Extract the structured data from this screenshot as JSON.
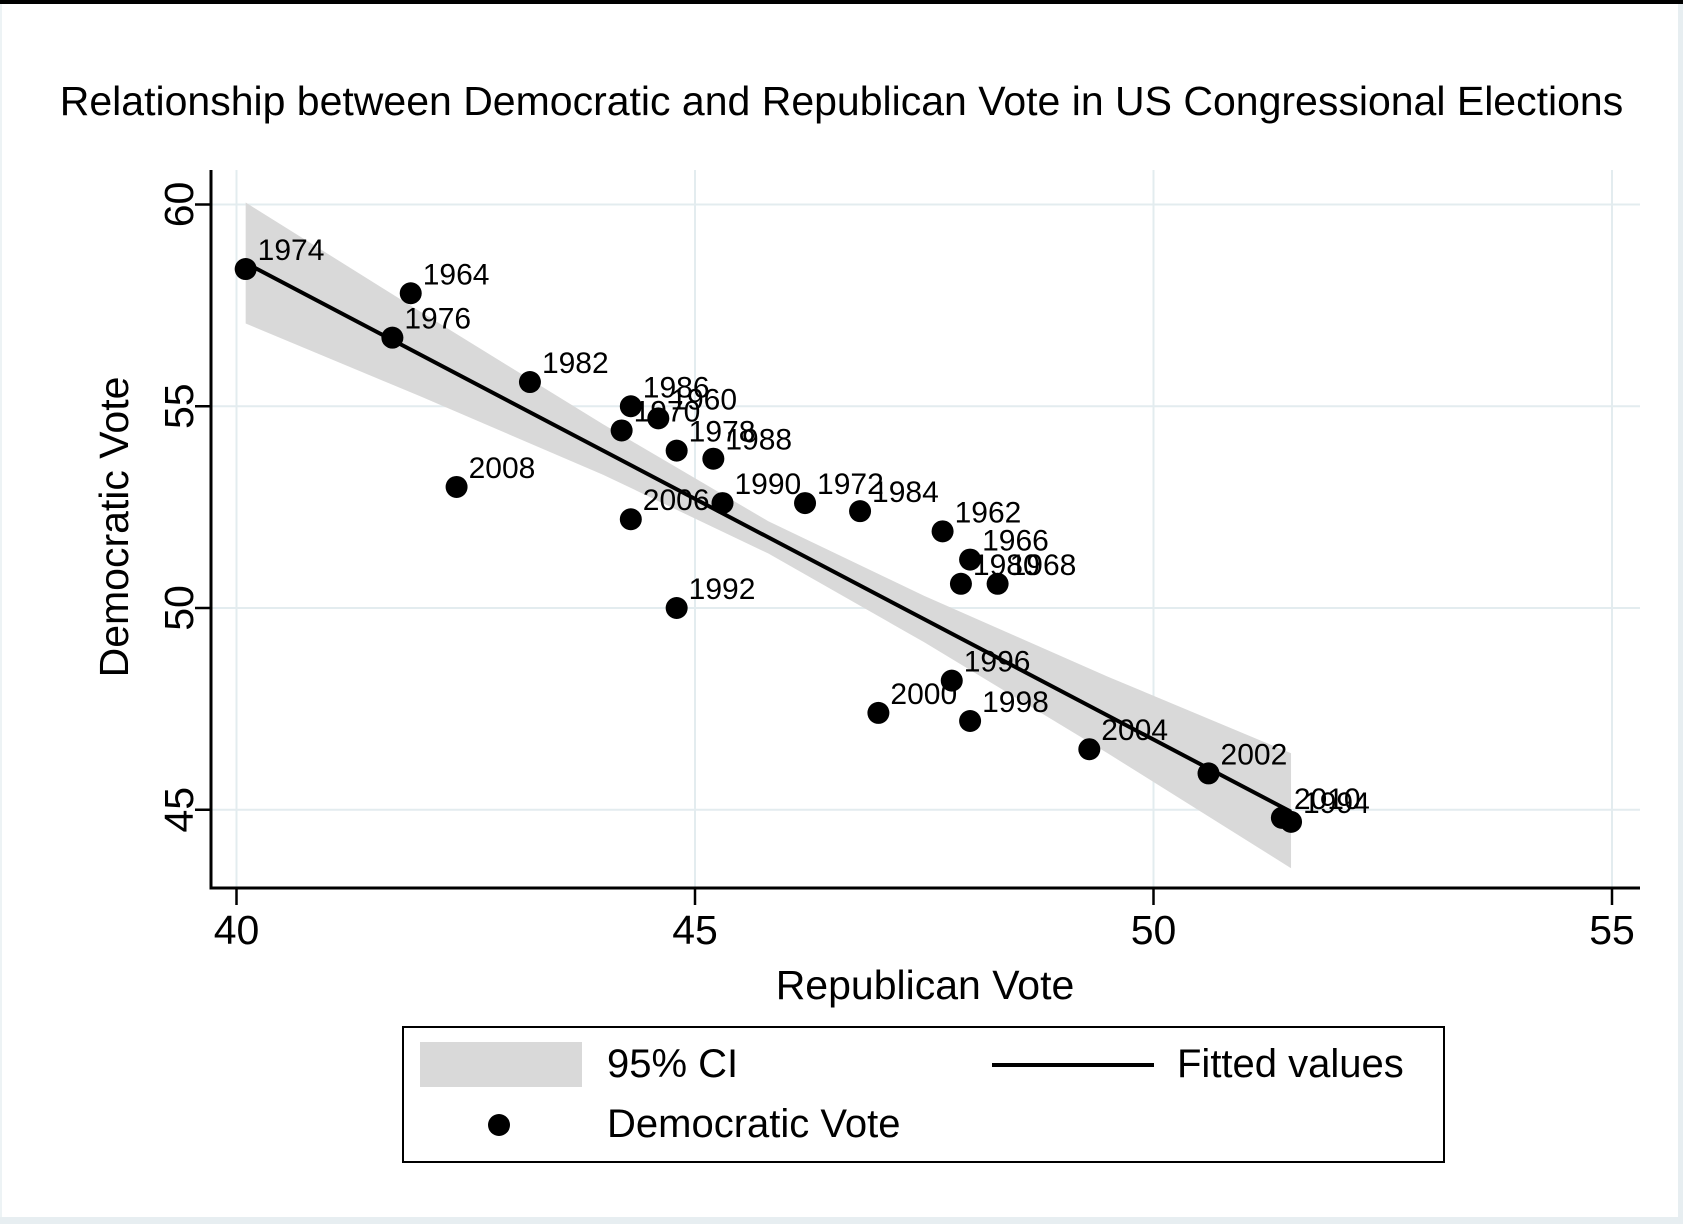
{
  "chart_data": {
    "type": "scatter",
    "title": "Relationship between Democratic and Republican Vote in US Congressional Elections",
    "xlabel": "Republican Vote",
    "ylabel": "Democratic Vote",
    "x_ticks": [
      40,
      45,
      50,
      55
    ],
    "y_ticks": [
      45,
      50,
      55,
      60
    ],
    "xlim": [
      39.7,
      55.3
    ],
    "ylim": [
      43.1,
      60.9
    ],
    "grid": true,
    "legend_position": "bottom",
    "points": [
      {
        "year": "1960",
        "rep": 44.6,
        "dem": 54.7
      },
      {
        "year": "1962",
        "rep": 47.7,
        "dem": 51.9
      },
      {
        "year": "1964",
        "rep": 41.9,
        "dem": 57.8
      },
      {
        "year": "1966",
        "rep": 48.0,
        "dem": 51.2
      },
      {
        "year": "1968",
        "rep": 48.3,
        "dem": 50.6
      },
      {
        "year": "1970",
        "rep": 44.2,
        "dem": 54.4
      },
      {
        "year": "1972",
        "rep": 46.2,
        "dem": 52.6
      },
      {
        "year": "1974",
        "rep": 40.1,
        "dem": 58.4
      },
      {
        "year": "1976",
        "rep": 41.7,
        "dem": 56.7
      },
      {
        "year": "1978",
        "rep": 44.8,
        "dem": 53.9
      },
      {
        "year": "1980",
        "rep": 47.9,
        "dem": 50.6
      },
      {
        "year": "1982",
        "rep": 43.2,
        "dem": 55.6
      },
      {
        "year": "1984",
        "rep": 46.8,
        "dem": 52.4
      },
      {
        "year": "1986",
        "rep": 44.3,
        "dem": 55.0
      },
      {
        "year": "1988",
        "rep": 45.2,
        "dem": 53.7
      },
      {
        "year": "1990",
        "rep": 45.3,
        "dem": 52.6
      },
      {
        "year": "1992",
        "rep": 44.8,
        "dem": 50.0
      },
      {
        "year": "1994",
        "rep": 51.5,
        "dem": 44.7
      },
      {
        "year": "1996",
        "rep": 47.8,
        "dem": 48.2
      },
      {
        "year": "1998",
        "rep": 48.0,
        "dem": 47.2
      },
      {
        "year": "2000",
        "rep": 47.0,
        "dem": 47.4
      },
      {
        "year": "2002",
        "rep": 50.6,
        "dem": 45.9
      },
      {
        "year": "2004",
        "rep": 49.3,
        "dem": 46.5
      },
      {
        "year": "2006",
        "rep": 44.3,
        "dem": 52.2
      },
      {
        "year": "2008",
        "rep": 42.4,
        "dem": 53.0
      },
      {
        "year": "2010",
        "rep": 51.4,
        "dem": 44.8
      }
    ],
    "fitted_line": {
      "x1": 40.1,
      "y1": 58.55,
      "x2": 51.5,
      "y2": 44.95
    },
    "ci_band": {
      "x": [
        40.1,
        42.0,
        44.0,
        45.8,
        47.5,
        49.5,
        51.5
      ],
      "upper": [
        60.05,
        57.35,
        54.55,
        52.15,
        50.3,
        48.3,
        46.4
      ],
      "lower": [
        57.05,
        55.25,
        53.3,
        51.35,
        49.15,
        46.4,
        43.55
      ]
    },
    "legend": {
      "ci_label": "95% CI",
      "fitted_label": "Fitted values",
      "marker_label": "Democratic Vote"
    },
    "colors": {
      "ci_band": "#d9d9d9",
      "fitted_line": "#000000",
      "marker": "#000000",
      "gridline": "#e3ecef",
      "axis": "#000000",
      "background": "#ffffff"
    }
  }
}
